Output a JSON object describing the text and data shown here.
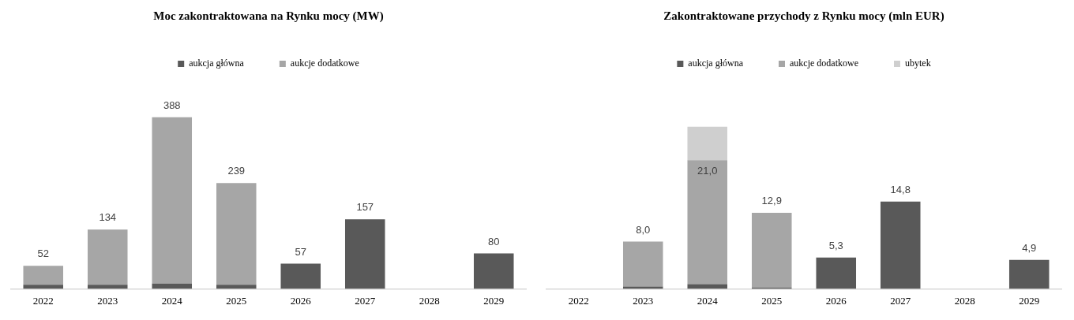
{
  "chart_data": [
    {
      "type": "bar",
      "title": "Moc zakontraktowana na Rynku mocy (MW)",
      "stacked": true,
      "legend": "top",
      "grid": false,
      "categories": [
        "2022",
        "2023",
        "2024",
        "2025",
        "2026",
        "2027",
        "2028",
        "2029"
      ],
      "series": [
        {
          "name": "aukcja główna",
          "color": "#595959",
          "values": [
            9,
            9,
            12,
            9,
            57,
            157,
            null,
            80
          ],
          "value_labels": [
            null,
            null,
            null,
            null,
            "57",
            "157",
            null,
            "80"
          ]
        },
        {
          "name": "aukcje dodatkowe",
          "color": "#a6a6a6",
          "values": [
            43,
            125,
            376,
            230,
            null,
            null,
            null,
            null
          ]
        }
      ],
      "totals": [
        "52",
        "134",
        "388",
        "239",
        null,
        null,
        null,
        null
      ]
    },
    {
      "type": "bar",
      "title": "Zakontraktowane przychody z Rynku mocy (mln EUR)",
      "stacked": true,
      "legend": "top",
      "grid": false,
      "categories": [
        "2022",
        "2023",
        "2024",
        "2025",
        "2026",
        "2027",
        "2028",
        "2029"
      ],
      "series": [
        {
          "name": "aukcja główna",
          "color": "#595959",
          "values": [
            null,
            0.4,
            0.8,
            0.2,
            5.3,
            14.8,
            null,
            4.9
          ],
          "value_labels": [
            null,
            null,
            null,
            null,
            "5,3",
            "14,8",
            null,
            "4,9"
          ]
        },
        {
          "name": "aukcje dodatkowe",
          "color": "#a6a6a6",
          "values": [
            null,
            7.6,
            21.0,
            12.7,
            null,
            null,
            null,
            null
          ],
          "value_labels": [
            null,
            null,
            "21,0",
            null,
            null,
            null,
            null,
            null
          ]
        },
        {
          "name": "ubytek",
          "color": "#cfcfcf",
          "values": [
            null,
            null,
            5.7,
            null,
            null,
            null,
            null,
            null
          ]
        }
      ],
      "totals": [
        null,
        "8,0",
        null,
        "12,9",
        null,
        null,
        null,
        null
      ]
    }
  ]
}
